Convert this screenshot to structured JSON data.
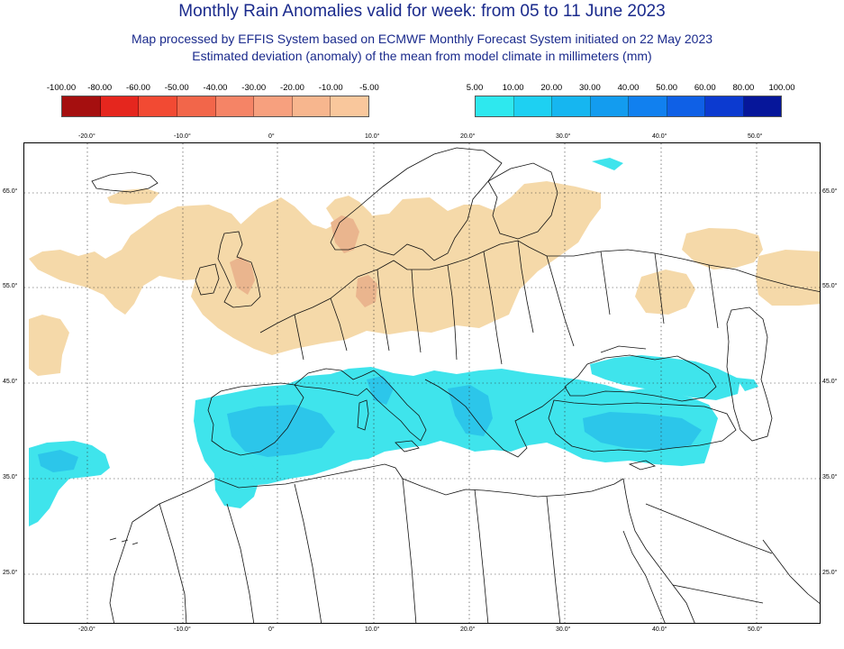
{
  "header": {
    "title": "Monthly Rain Anomalies valid for week: from 05 to 11 June 2023",
    "subtitle_line1": "Map processed by EFFIS System based on ECMWF Monthly Forecast System initiated on 22 May 2023",
    "subtitle_line2": "Estimated deviation (anomaly) of the mean from model climate in millimeters (mm)"
  },
  "legend_negative": {
    "labels": [
      "-100.00",
      "-80.00",
      "-60.00",
      "-50.00",
      "-40.00",
      "-30.00",
      "-20.00",
      "-10.00",
      "-5.00"
    ],
    "colors": [
      "#a50f0f",
      "#e5261e",
      "#f24a33",
      "#f2664a",
      "#f58466",
      "#f7a07e",
      "#f7b68e",
      "#f9c79c"
    ]
  },
  "legend_positive": {
    "labels": [
      "5.00",
      "10.00",
      "20.00",
      "30.00",
      "40.00",
      "50.00",
      "60.00",
      "80.00",
      "100.00"
    ],
    "colors": [
      "#2ee8ee",
      "#1ed0f2",
      "#16b6f0",
      "#139cef",
      "#1180ef",
      "#0f60e6",
      "#0c3ad0",
      "#06169a"
    ]
  },
  "map": {
    "lon_labels": [
      "-20.0°",
      "-10.0°",
      "0°",
      "10.0°",
      "20.0°",
      "30.0°",
      "40.0°",
      "50.0°"
    ],
    "lat_labels": [
      "65.0°",
      "55.0°",
      "45.0°",
      "35.0°",
      "25.0°"
    ],
    "dry_color": "#f5d9a9",
    "dry_dark_color": "#eab58e",
    "wet_color": "#3fe4ec",
    "wet_dark_color": "#2cc6ea"
  }
}
